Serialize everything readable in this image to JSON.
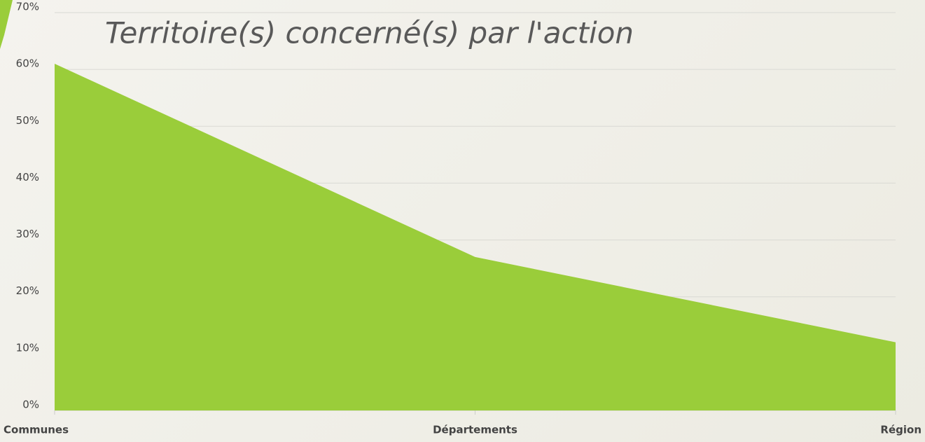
{
  "chart_data": {
    "type": "area",
    "title": "Territoire(s) concerné(s) par l'action",
    "categories": [
      "Communes",
      "Départements",
      "Région"
    ],
    "values": [
      61,
      27,
      12
    ],
    "color": "#9acd3a",
    "ylim": [
      0,
      70
    ],
    "yticks": [
      {
        "value": 0,
        "label": "0%"
      },
      {
        "value": 10,
        "label": "10%"
      },
      {
        "value": 20,
        "label": "20%"
      },
      {
        "value": 30,
        "label": "30%"
      },
      {
        "value": 40,
        "label": "40%"
      },
      {
        "value": 50,
        "label": "50%"
      },
      {
        "value": 60,
        "label": "60%"
      },
      {
        "value": 70,
        "label": "70%"
      }
    ],
    "grid": true
  }
}
